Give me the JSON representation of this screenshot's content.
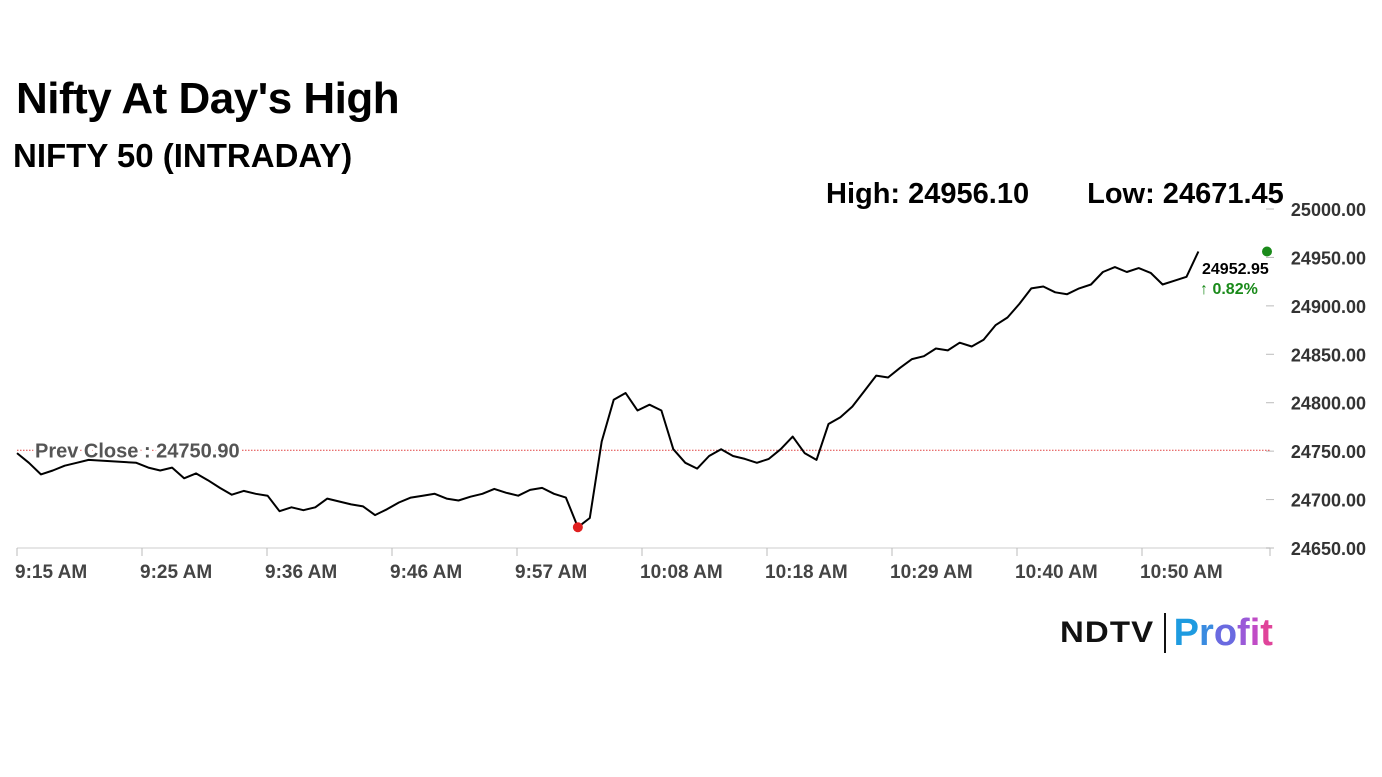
{
  "headline": "Nifty At Day's High",
  "subtitle": "NIFTY 50 (INTRADAY)",
  "stats": {
    "high": "High: 24956.10",
    "low": "Low: 24671.45"
  },
  "prev_close_label": "Prev Close : 24750.90",
  "last_price": "24952.95",
  "change": "↑ 0.82%",
  "logo": {
    "ndtv": "NDTV",
    "profit": "Profit"
  },
  "colors": {
    "line": "#000000",
    "up": "#1a8a1a",
    "low_dot": "#e02020",
    "prev_close": "#e04040",
    "grid": "#dddddd"
  },
  "chart_data": {
    "type": "line",
    "series_name": "NIFTY 50",
    "x_ticks": [
      "9:15 AM",
      "9:25 AM",
      "9:36 AM",
      "9:46 AM",
      "9:57 AM",
      "10:08 AM",
      "10:18 AM",
      "10:29 AM",
      "10:40 AM",
      "10:50 AM"
    ],
    "y_ticks": [
      "24650.00",
      "24700.00",
      "24750.00",
      "24800.00",
      "24850.00",
      "24900.00",
      "24950.00",
      "25000.00"
    ],
    "ylim": [
      24650,
      25000
    ],
    "prev_close": 24750.9,
    "high": 24956.1,
    "low": 24671.45,
    "points": [
      [
        "9:15",
        24748
      ],
      [
        "9:16",
        24738
      ],
      [
        "9:17",
        24726
      ],
      [
        "9:18",
        24730
      ],
      [
        "9:19",
        24735
      ],
      [
        "9:20",
        24738
      ],
      [
        "9:21",
        24741
      ],
      [
        "9:25",
        24738
      ],
      [
        "9:26",
        24733
      ],
      [
        "9:27",
        24730
      ],
      [
        "9:28",
        24733
      ],
      [
        "9:29",
        24722
      ],
      [
        "9:30",
        24727
      ],
      [
        "9:31",
        24720
      ],
      [
        "9:32",
        24712
      ],
      [
        "9:33",
        24705
      ],
      [
        "9:34",
        24709
      ],
      [
        "9:35",
        24706
      ],
      [
        "9:36",
        24704
      ],
      [
        "9:37",
        24688
      ],
      [
        "9:38",
        24692
      ],
      [
        "9:39",
        24689
      ],
      [
        "9:40",
        24692
      ],
      [
        "9:41",
        24701
      ],
      [
        "9:42",
        24698
      ],
      [
        "9:43",
        24695
      ],
      [
        "9:44",
        24693
      ],
      [
        "9:45",
        24684
      ],
      [
        "9:46",
        24690
      ],
      [
        "9:47",
        24697
      ],
      [
        "9:48",
        24702
      ],
      [
        "9:49",
        24704
      ],
      [
        "9:50",
        24706
      ],
      [
        "9:51",
        24701
      ],
      [
        "9:52",
        24699
      ],
      [
        "9:53",
        24703
      ],
      [
        "9:54",
        24706
      ],
      [
        "9:55",
        24711
      ],
      [
        "9:56",
        24707
      ],
      [
        "9:57",
        24704
      ],
      [
        "9:58",
        24710
      ],
      [
        "9:59",
        24712
      ],
      [
        "10:00",
        24706
      ],
      [
        "10:01",
        24702
      ],
      [
        "10:02",
        24671.45
      ],
      [
        "10:03",
        24681
      ],
      [
        "10:04",
        24760
      ],
      [
        "10:05",
        24803
      ],
      [
        "10:06",
        24810
      ],
      [
        "10:07",
        24792
      ],
      [
        "10:08",
        24798
      ],
      [
        "10:09",
        24792
      ],
      [
        "10:10",
        24752
      ],
      [
        "10:11",
        24738
      ],
      [
        "10:12",
        24732
      ],
      [
        "10:13",
        24745
      ],
      [
        "10:14",
        24752
      ],
      [
        "10:15",
        24745
      ],
      [
        "10:16",
        24742
      ],
      [
        "10:17",
        24738
      ],
      [
        "10:18",
        24742
      ],
      [
        "10:19",
        24752
      ],
      [
        "10:20",
        24765
      ],
      [
        "10:21",
        24748
      ],
      [
        "10:22",
        24741
      ],
      [
        "10:23",
        24778
      ],
      [
        "10:24",
        24785
      ],
      [
        "10:25",
        24796
      ],
      [
        "10:26",
        24812
      ],
      [
        "10:27",
        24828
      ],
      [
        "10:28",
        24826
      ],
      [
        "10:29",
        24836
      ],
      [
        "10:30",
        24845
      ],
      [
        "10:31",
        24848
      ],
      [
        "10:32",
        24856
      ],
      [
        "10:33",
        24854
      ],
      [
        "10:34",
        24862
      ],
      [
        "10:35",
        24858
      ],
      [
        "10:36",
        24865
      ],
      [
        "10:37",
        24880
      ],
      [
        "10:38",
        24888
      ],
      [
        "10:39",
        24902
      ],
      [
        "10:40",
        24918
      ],
      [
        "10:41",
        24920
      ],
      [
        "10:42",
        24914
      ],
      [
        "10:43",
        24912
      ],
      [
        "10:44",
        24918
      ],
      [
        "10:45",
        24922
      ],
      [
        "10:46",
        24935
      ],
      [
        "10:47",
        24940
      ],
      [
        "10:48",
        24935
      ],
      [
        "10:49",
        24939
      ],
      [
        "10:50",
        24934
      ],
      [
        "10:51",
        24922
      ],
      [
        "10:52",
        24926
      ],
      [
        "10:53",
        24930
      ],
      [
        "10:54",
        24956.1
      ]
    ]
  }
}
